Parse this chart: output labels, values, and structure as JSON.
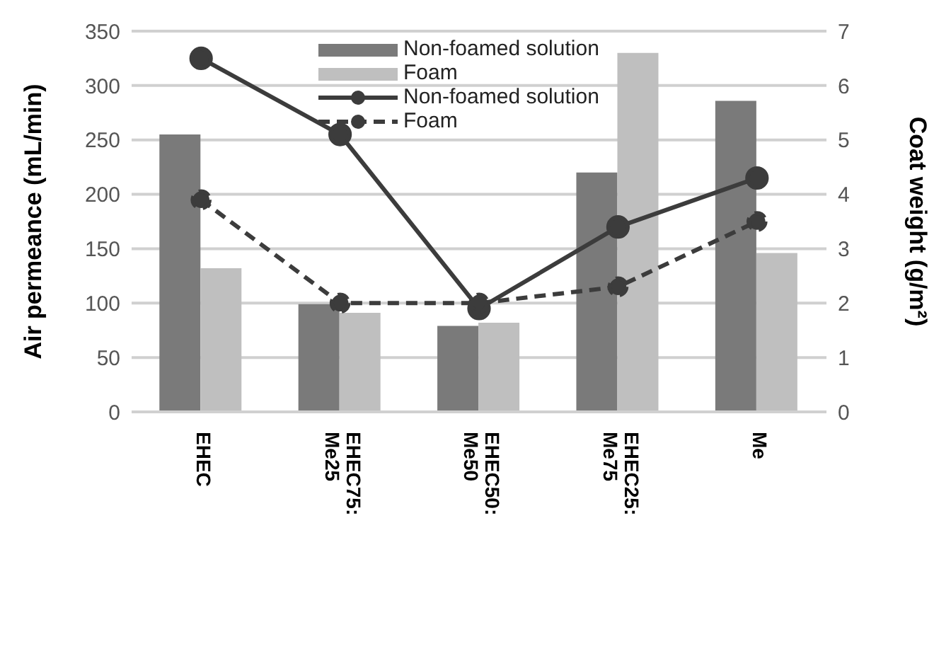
{
  "chart_data": {
    "type": "bar",
    "categories": [
      "EHEC",
      "EHEC75: Me25",
      "EHEC50: Me50",
      "EHEC25: Me75",
      "Me"
    ],
    "ylabel": "Air permeance (mL/min)",
    "y2label": "Coat weight (g/m²)",
    "ylim": [
      0,
      350
    ],
    "yticks": [
      0,
      50,
      100,
      150,
      200,
      250,
      300,
      350
    ],
    "y2lim": [
      0,
      7
    ],
    "y2ticks": [
      0,
      1,
      2,
      3,
      4,
      5,
      6,
      7
    ],
    "grid": "y",
    "legend": "top",
    "marker": "circle",
    "series": [
      {
        "name": "Non-foamed solution",
        "color": "#7a7a7a",
        "values": [
          255,
          99,
          79,
          220,
          286
        ]
      },
      {
        "name": "Foam",
        "color": "#bfbfbf",
        "values": [
          132,
          91,
          82,
          330,
          146
        ]
      },
      {
        "name": "Non-foamed solution",
        "type": "line",
        "axis": "y2",
        "line_style": "solid",
        "color": "#3c3c3c",
        "values": [
          6.5,
          5.1,
          1.9,
          3.4,
          4.3
        ]
      },
      {
        "name": "Foam",
        "type": "line",
        "axis": "y2",
        "line_style": "dashed",
        "color": "#3c3c3c",
        "values": [
          3.9,
          2.0,
          2.0,
          2.3,
          3.5
        ]
      }
    ]
  }
}
